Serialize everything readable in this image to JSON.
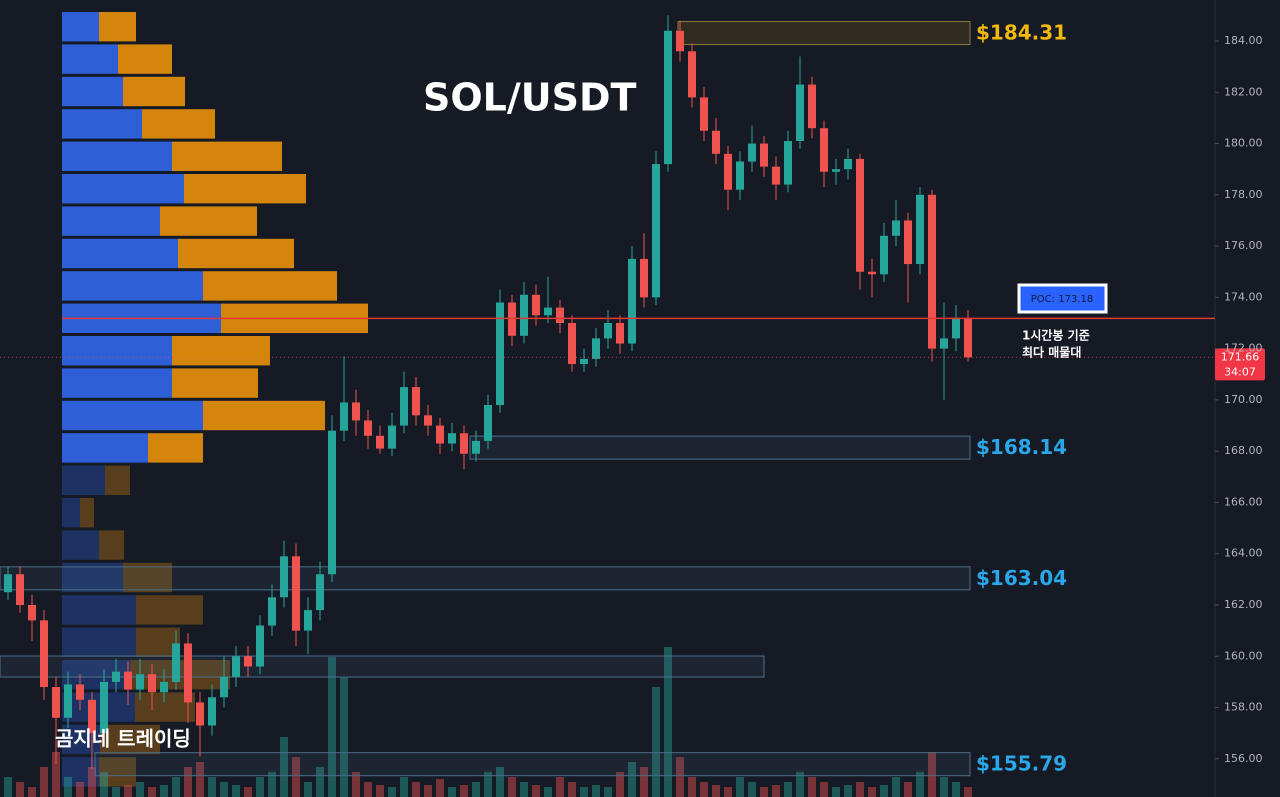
{
  "chart_data": {
    "type": "candlestick",
    "title": "SOL/USDT",
    "watermark": "곰지네 트레이딩",
    "ylim": [
      154.51,
      185.6
    ],
    "yticks": [
      {
        "value": 156,
        "label": "156.00"
      },
      {
        "value": 158,
        "label": "158.00"
      },
      {
        "value": 160,
        "label": "160.00"
      },
      {
        "value": 162,
        "label": "162.00"
      },
      {
        "value": 164,
        "label": "164.00"
      },
      {
        "value": 166,
        "label": "166.00"
      },
      {
        "value": 168,
        "label": "168.00"
      },
      {
        "value": 170,
        "label": "170.00"
      },
      {
        "value": 172,
        "label": "172.00"
      },
      {
        "value": 174,
        "label": "174.00"
      },
      {
        "value": 176,
        "label": "176.00"
      },
      {
        "value": 178,
        "label": "178.00"
      },
      {
        "value": 180,
        "label": "180.00"
      },
      {
        "value": 182,
        "label": "182.00"
      },
      {
        "value": 184,
        "label": "184.00"
      }
    ],
    "up_color": "#26a69a",
    "down_color": "#ef5350",
    "ohlc": [
      [
        162.5,
        163.5,
        162.2,
        163.2
      ],
      [
        163.2,
        163.5,
        161.7,
        162.0
      ],
      [
        162.0,
        162.4,
        160.6,
        161.4
      ],
      [
        161.4,
        161.8,
        158.3,
        158.8
      ],
      [
        158.8,
        159.2,
        155.8,
        157.6
      ],
      [
        157.6,
        159.4,
        157.2,
        158.9
      ],
      [
        158.9,
        159.3,
        157.9,
        158.3
      ],
      [
        158.3,
        158.6,
        155.6,
        157.0
      ],
      [
        157.0,
        159.5,
        156.6,
        159.0
      ],
      [
        159.0,
        159.9,
        158.6,
        159.4
      ],
      [
        159.4,
        159.8,
        158.1,
        158.7
      ],
      [
        158.7,
        159.9,
        158.3,
        159.3
      ],
      [
        159.3,
        159.7,
        157.9,
        158.6
      ],
      [
        158.6,
        159.5,
        158.2,
        159.0
      ],
      [
        159.0,
        161.0,
        158.7,
        160.5
      ],
      [
        160.5,
        160.9,
        157.4,
        158.2
      ],
      [
        158.2,
        158.6,
        156.1,
        157.3
      ],
      [
        157.3,
        158.9,
        156.9,
        158.4
      ],
      [
        158.4,
        160.0,
        158.0,
        159.2
      ],
      [
        159.2,
        160.4,
        158.8,
        160.0
      ],
      [
        160.0,
        160.4,
        159.2,
        159.6
      ],
      [
        159.6,
        161.6,
        159.3,
        161.2
      ],
      [
        161.2,
        162.8,
        160.8,
        162.3
      ],
      [
        162.3,
        164.5,
        161.9,
        163.9
      ],
      [
        163.9,
        164.4,
        160.4,
        161.0
      ],
      [
        161.0,
        162.3,
        160.1,
        161.8
      ],
      [
        161.8,
        163.7,
        161.4,
        163.2
      ],
      [
        163.2,
        169.4,
        162.9,
        168.8
      ],
      [
        168.8,
        171.7,
        168.4,
        169.9
      ],
      [
        169.9,
        170.4,
        168.6,
        169.2
      ],
      [
        169.2,
        169.6,
        168.1,
        168.6
      ],
      [
        168.6,
        169.0,
        167.9,
        168.1
      ],
      [
        168.1,
        169.5,
        167.8,
        169.0
      ],
      [
        169.0,
        171.1,
        168.7,
        170.5
      ],
      [
        170.5,
        170.9,
        169.0,
        169.4
      ],
      [
        169.4,
        169.8,
        168.6,
        169.0
      ],
      [
        169.0,
        169.3,
        167.9,
        168.3
      ],
      [
        168.3,
        169.1,
        168.0,
        168.7
      ],
      [
        168.7,
        169.0,
        167.3,
        167.9
      ],
      [
        167.9,
        168.8,
        167.6,
        168.4
      ],
      [
        168.4,
        170.2,
        168.1,
        169.8
      ],
      [
        169.8,
        174.3,
        169.5,
        173.8
      ],
      [
        173.8,
        174.1,
        172.1,
        172.5
      ],
      [
        172.5,
        174.6,
        172.2,
        174.1
      ],
      [
        174.1,
        174.5,
        172.9,
        173.3
      ],
      [
        173.3,
        174.8,
        173.0,
        173.6
      ],
      [
        173.6,
        173.9,
        172.6,
        173.0
      ],
      [
        173.0,
        173.3,
        171.1,
        171.4
      ],
      [
        171.4,
        172.0,
        171.1,
        171.6
      ],
      [
        171.6,
        172.8,
        171.3,
        172.4
      ],
      [
        172.4,
        173.5,
        172.0,
        173.0
      ],
      [
        173.0,
        173.3,
        171.8,
        172.2
      ],
      [
        172.2,
        176.0,
        171.9,
        175.5
      ],
      [
        175.5,
        176.5,
        173.6,
        174.0
      ],
      [
        174.0,
        179.7,
        173.7,
        179.2
      ],
      [
        179.2,
        185.0,
        178.9,
        184.4
      ],
      [
        184.4,
        184.8,
        183.2,
        183.6
      ],
      [
        183.6,
        183.9,
        181.4,
        181.8
      ],
      [
        181.8,
        182.2,
        180.1,
        180.5
      ],
      [
        180.5,
        181.0,
        179.2,
        179.6
      ],
      [
        179.6,
        179.9,
        177.4,
        178.2
      ],
      [
        178.2,
        179.7,
        177.8,
        179.3
      ],
      [
        179.3,
        180.7,
        178.9,
        180.0
      ],
      [
        180.0,
        180.3,
        178.7,
        179.1
      ],
      [
        179.1,
        179.5,
        177.8,
        178.4
      ],
      [
        178.4,
        180.5,
        178.1,
        180.1
      ],
      [
        180.1,
        183.4,
        179.8,
        182.3
      ],
      [
        182.3,
        182.6,
        180.2,
        180.6
      ],
      [
        180.6,
        180.9,
        178.3,
        178.9
      ],
      [
        178.9,
        179.4,
        178.4,
        179.0
      ],
      [
        179.0,
        179.8,
        178.6,
        179.4
      ],
      [
        179.4,
        179.6,
        174.3,
        175.0
      ],
      [
        175.0,
        175.5,
        174.0,
        174.9
      ],
      [
        174.9,
        176.9,
        174.6,
        176.4
      ],
      [
        176.4,
        177.8,
        176.0,
        177.0
      ],
      [
        177.0,
        177.3,
        173.8,
        175.3
      ],
      [
        175.3,
        178.3,
        174.9,
        178.0
      ],
      [
        178.0,
        178.2,
        171.5,
        172.0
      ],
      [
        172.0,
        173.8,
        170.0,
        172.4
      ],
      [
        172.4,
        173.7,
        171.9,
        173.2
      ],
      [
        173.2,
        173.5,
        171.5,
        171.66
      ]
    ],
    "volume": [
      20,
      15,
      10,
      30,
      45,
      20,
      15,
      30,
      25,
      10,
      12,
      15,
      10,
      12,
      20,
      30,
      35,
      20,
      15,
      12,
      10,
      20,
      25,
      60,
      40,
      15,
      30,
      140,
      120,
      25,
      15,
      12,
      10,
      20,
      15,
      12,
      18,
      10,
      12,
      15,
      25,
      30,
      20,
      15,
      12,
      10,
      20,
      15,
      10,
      12,
      10,
      25,
      35,
      30,
      110,
      150,
      40,
      20,
      15,
      12,
      10,
      20,
      15,
      10,
      12,
      15,
      25,
      20,
      15,
      10,
      12,
      15,
      10,
      12,
      20,
      15,
      25,
      45,
      20,
      15,
      10
    ],
    "profile_buy": [
      37,
      56,
      61,
      80,
      110,
      122,
      98,
      116,
      141,
      159,
      110,
      110,
      141,
      86,
      43,
      18,
      37,
      61,
      74,
      74,
      68,
      73,
      38,
      37
    ],
    "profile_sell": [
      37,
      54,
      62,
      73,
      110,
      122,
      97,
      116,
      134,
      147,
      98,
      86,
      122,
      55,
      25,
      14,
      25,
      49,
      67,
      44,
      100,
      60,
      60,
      37
    ],
    "profile_buy_color": "#2f5fd6",
    "profile_sell_color": "#d4850c",
    "poc": {
      "value": 173.18,
      "label": "POC: 173.18",
      "note": [
        "1시간봉 기준",
        "최다 매물대"
      ],
      "color": "#e53935"
    },
    "last_price": {
      "value": 171.66,
      "label": "171.66",
      "countdown": "34:07"
    },
    "levels": [
      {
        "value": 184.31,
        "label": "$184.31",
        "color": "#f0b90b"
      },
      {
        "value": 168.14,
        "label": "$168.14",
        "color": "#2aa7e8"
      },
      {
        "value": 163.04,
        "label": "$163.04",
        "color": "#2aa7e8"
      },
      {
        "value": 155.79,
        "label": "$155.79",
        "color": "#2aa7e8"
      }
    ],
    "zones": [
      159.6
    ]
  }
}
